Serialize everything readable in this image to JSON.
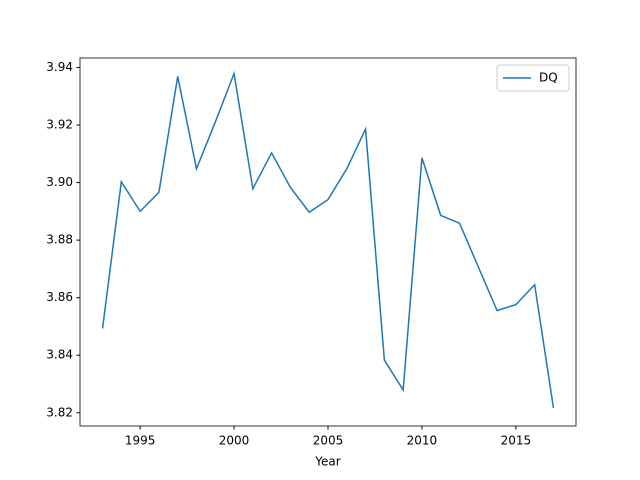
{
  "chart_data": {
    "type": "line",
    "x_label": "Year",
    "x": [
      1993,
      1994,
      1995,
      1996,
      1997,
      1998,
      1999,
      2000,
      2001,
      2002,
      2003,
      2004,
      2005,
      2006,
      2007,
      2008,
      2009,
      2010,
      2011,
      2012,
      2013,
      2014,
      2015,
      2016,
      2017
    ],
    "series": [
      {
        "name": "DQ",
        "color": "#1f77b4",
        "values": [
          3.8493,
          3.9003,
          3.89,
          3.8966,
          3.9369,
          3.9048,
          3.921,
          3.9379,
          3.8979,
          3.9103,
          3.8983,
          3.8897,
          3.8941,
          3.9048,
          3.9186,
          3.8383,
          3.8279,
          3.9086,
          3.8886,
          3.8859,
          3.8707,
          3.8555,
          3.8576,
          3.8645,
          3.8217
        ]
      }
    ],
    "xlim": [
      1991.8,
      2018.2
    ],
    "xticks": [
      1995,
      2000,
      2005,
      2010,
      2015
    ],
    "ylim": [
      3.8154,
      3.9433
    ],
    "yticks": [
      3.82,
      3.84,
      3.86,
      3.88,
      {
        "value": 3.9,
        "label": "3.90"
      },
      3.92,
      3.94
    ],
    "grid": false,
    "legend": "upper right"
  }
}
